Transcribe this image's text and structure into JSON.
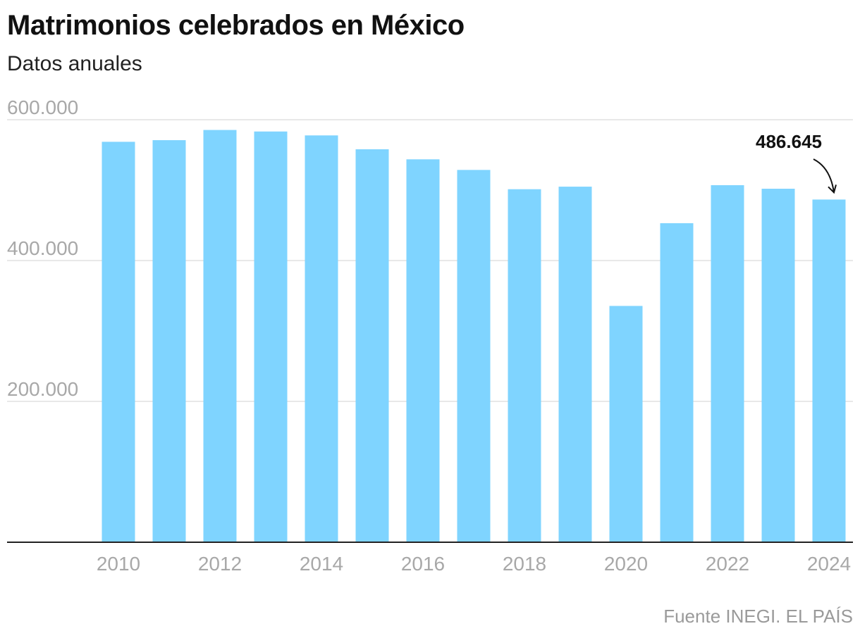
{
  "title": "Matrimonios celebrados en México",
  "subtitle": "Datos anuales",
  "source": "Fuente INEGI. EL PAÍS",
  "colors": {
    "bar": "#7fd4ff",
    "grid": "#e0e0e0",
    "axis": "#222222",
    "tick": "#a8a8a8",
    "annotation": "#111111"
  },
  "chart_data": {
    "type": "bar",
    "title": "Matrimonios celebrados en México",
    "subtitle": "Datos anuales",
    "xlabel": "",
    "ylabel": "",
    "categories": [
      2010,
      2011,
      2012,
      2013,
      2014,
      2015,
      2016,
      2017,
      2018,
      2019,
      2020,
      2021,
      2022,
      2023,
      2024
    ],
    "values": [
      568632,
      570954,
      585434,
      583264,
      577713,
      558022,
      543749,
      528678,
      501298,
      504923,
      335563,
      453085,
      507052,
      501979,
      486645
    ],
    "ylim": [
      0,
      600000
    ],
    "yticks": [
      200000,
      400000,
      600000
    ],
    "ytick_labels": [
      "200.000",
      "400.000",
      "600.000"
    ],
    "xtick_labels": [
      "2010",
      "2012",
      "2014",
      "2016",
      "2018",
      "2020",
      "2022",
      "2024"
    ],
    "xtick_years": [
      2010,
      2012,
      2014,
      2016,
      2018,
      2020,
      2022,
      2024
    ],
    "grid": true,
    "annotation": {
      "year": 2024,
      "label": "486.645"
    }
  }
}
